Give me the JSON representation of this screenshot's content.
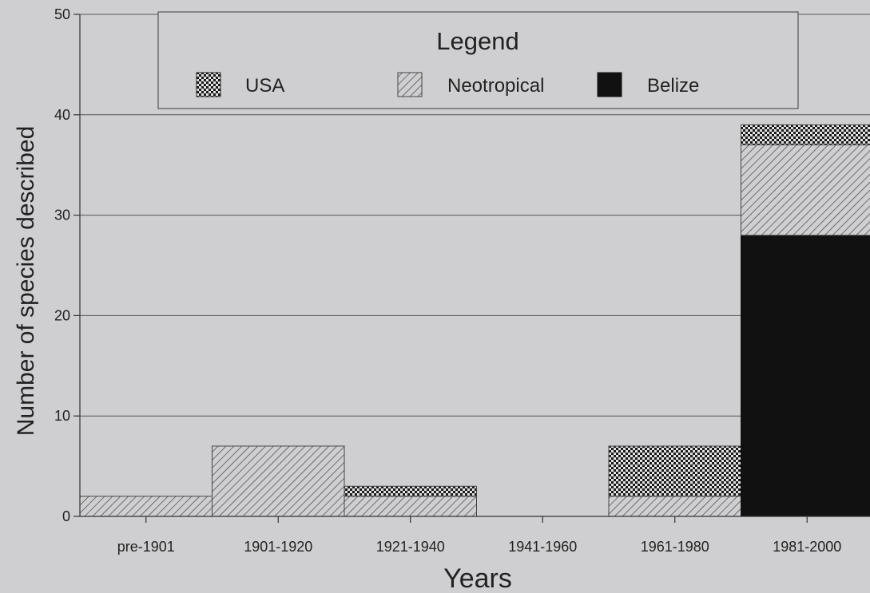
{
  "chart_data": {
    "type": "bar",
    "stacked": true,
    "xlabel": "Years",
    "ylabel": "Number of species described",
    "ylim": [
      0,
      50
    ],
    "yticks": [
      0,
      10,
      20,
      30,
      40,
      50
    ],
    "categories": [
      "pre-1901",
      "1901-1920",
      "1921-1940",
      "1941-1960",
      "1961-1980",
      "1981-2000"
    ],
    "series": [
      {
        "name": "Belize",
        "values": [
          0,
          0,
          0,
          0,
          0,
          28
        ],
        "pattern": "solid",
        "color": "#111111"
      },
      {
        "name": "Neotropical",
        "values": [
          2,
          7,
          2,
          0,
          2,
          9
        ],
        "pattern": "hatch",
        "color": "#555555"
      },
      {
        "name": "USA",
        "values": [
          0,
          0,
          1,
          0,
          5,
          2
        ],
        "pattern": "checker",
        "color": "#1a1a1a"
      }
    ],
    "legend": {
      "title": "Legend",
      "position": "top",
      "entries": [
        "USA",
        "Neotropical",
        "Belize"
      ]
    },
    "grid": true
  }
}
